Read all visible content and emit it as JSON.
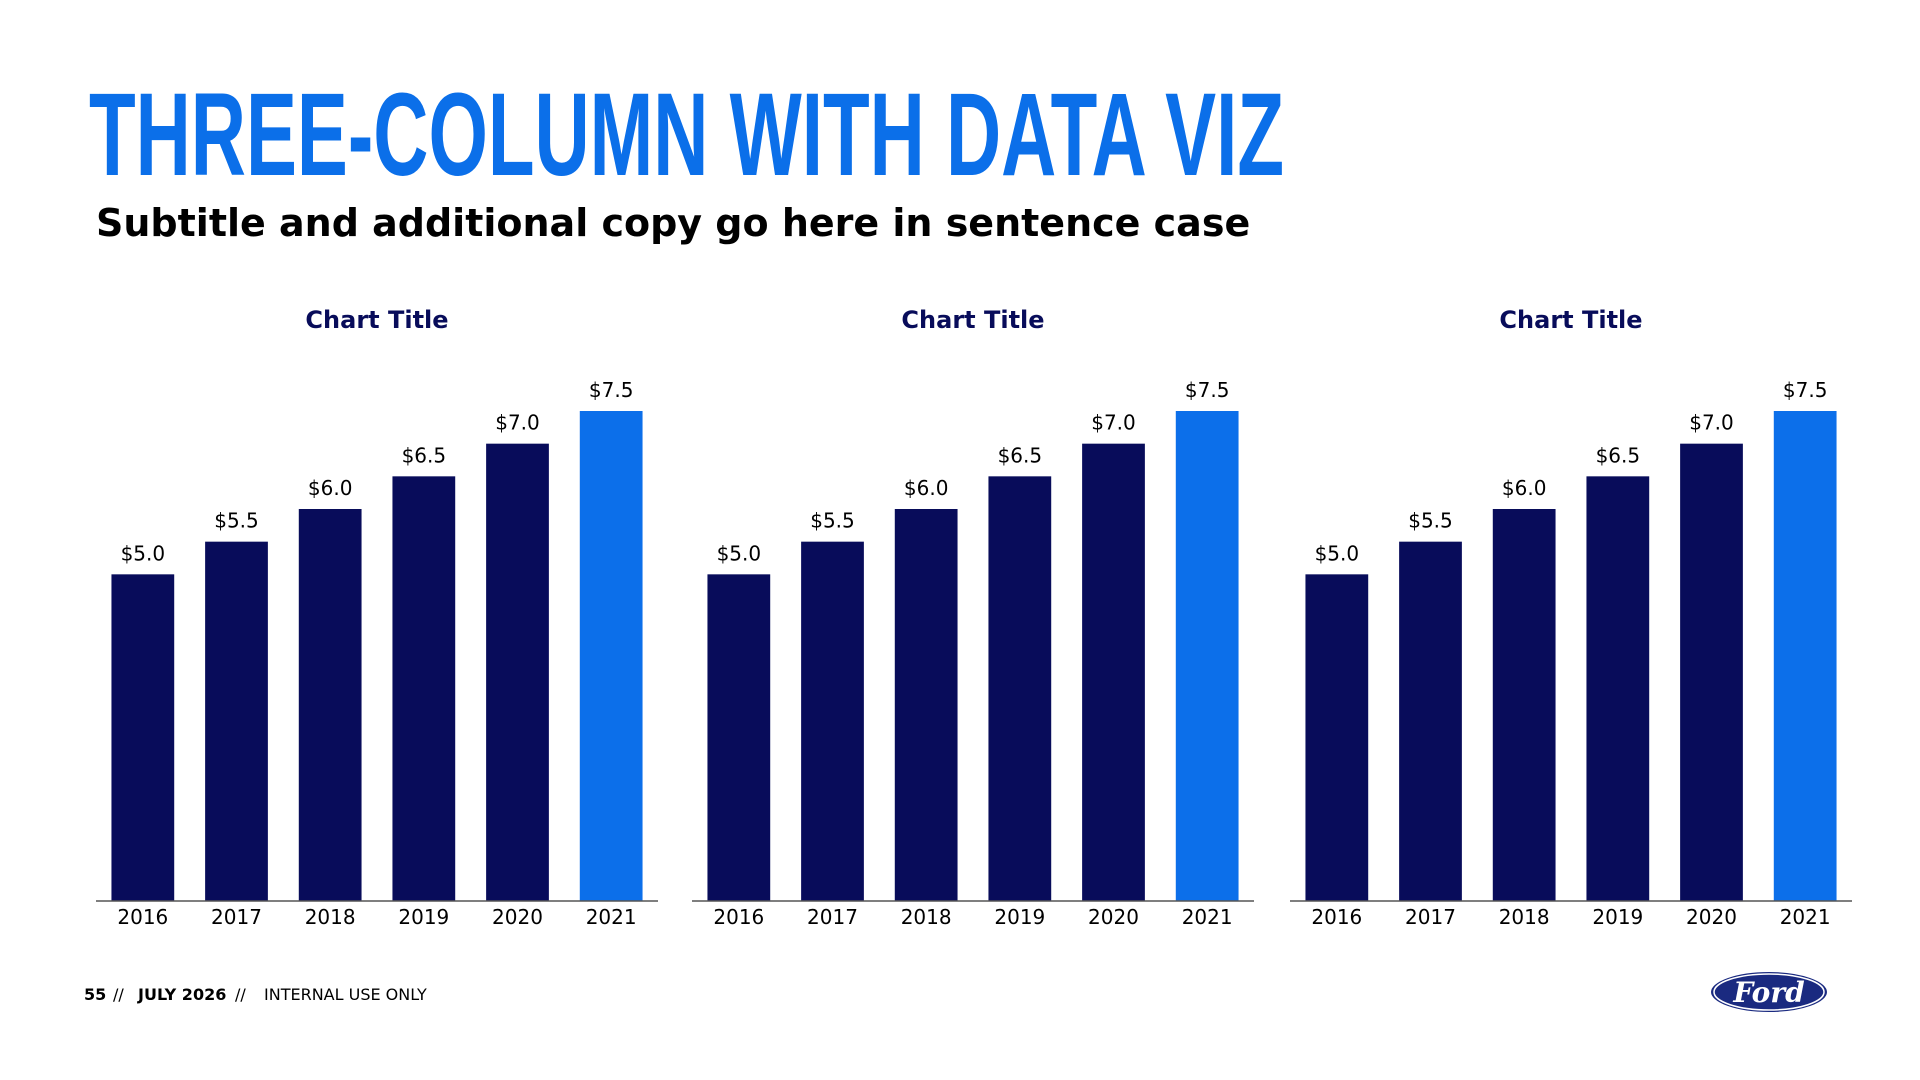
{
  "header": {
    "title": "THREE-COLUMN WITH DATA VIZ",
    "subtitle": "Subtitle and additional copy go here in sentence case"
  },
  "chart_data": [
    {
      "type": "bar",
      "title": "Chart Title",
      "categories": [
        "2016",
        "2017",
        "2018",
        "2019",
        "2020",
        "2021"
      ],
      "values": [
        5.0,
        5.5,
        6.0,
        6.5,
        7.0,
        7.5
      ],
      "value_labels": [
        "$5.0",
        "$5.5",
        "$6.0",
        "$6.5",
        "$7.0",
        "$7.5"
      ],
      "colors": [
        "#080c5a",
        "#080c5a",
        "#080c5a",
        "#080c5a",
        "#080c5a",
        "#0c6fea"
      ],
      "ylim": [
        0,
        7.5
      ]
    },
    {
      "type": "bar",
      "title": "Chart Title",
      "categories": [
        "2016",
        "2017",
        "2018",
        "2019",
        "2020",
        "2021"
      ],
      "values": [
        5.0,
        5.5,
        6.0,
        6.5,
        7.0,
        7.5
      ],
      "value_labels": [
        "$5.0",
        "$5.5",
        "$6.0",
        "$6.5",
        "$7.0",
        "$7.5"
      ],
      "colors": [
        "#080c5a",
        "#080c5a",
        "#080c5a",
        "#080c5a",
        "#080c5a",
        "#0c6fea"
      ],
      "ylim": [
        0,
        7.5
      ]
    },
    {
      "type": "bar",
      "title": "Chart Title",
      "categories": [
        "2016",
        "2017",
        "2018",
        "2019",
        "2020",
        "2021"
      ],
      "values": [
        5.0,
        5.5,
        6.0,
        6.5,
        7.0,
        7.5
      ],
      "value_labels": [
        "$5.0",
        "$5.5",
        "$6.0",
        "$6.5",
        "$7.0",
        "$7.5"
      ],
      "colors": [
        "#080c5a",
        "#080c5a",
        "#080c5a",
        "#080c5a",
        "#080c5a",
        "#0c6fea"
      ],
      "ylim": [
        0,
        7.5
      ]
    }
  ],
  "footer": {
    "page_number": "55",
    "separator": "//",
    "date": "JULY 2026",
    "classification": "INTERNAL USE ONLY",
    "logo": "Ford"
  }
}
